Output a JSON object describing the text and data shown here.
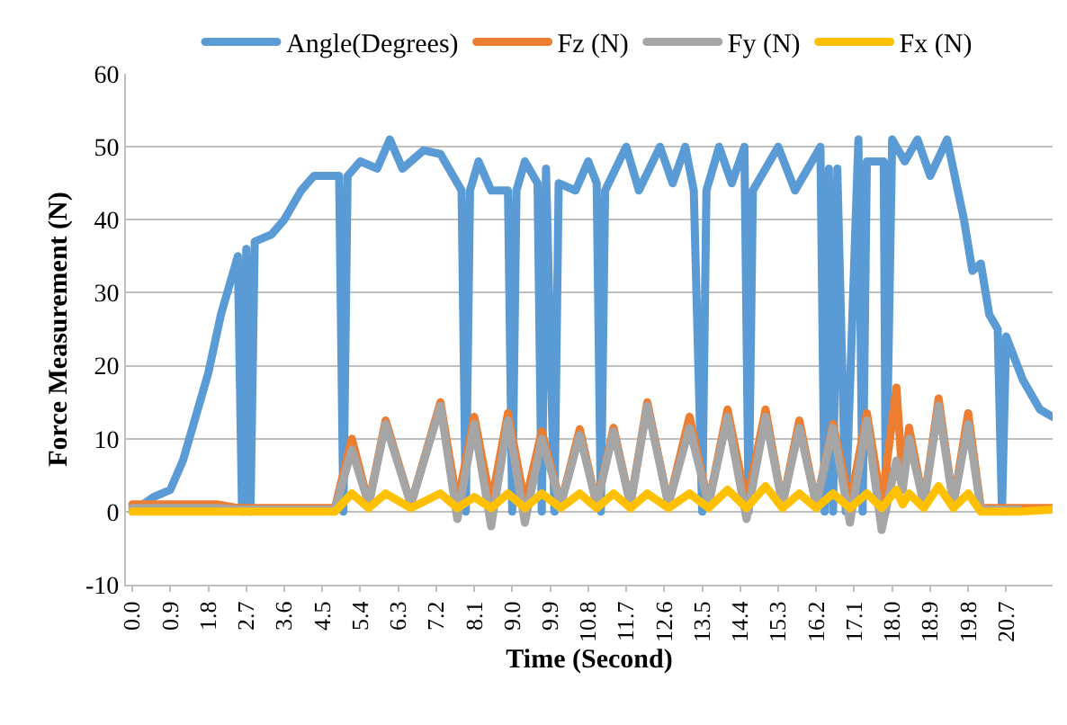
{
  "chart_data": {
    "type": "line",
    "xlabel": "Time (Second)",
    "ylabel": "Force Measurement (N)",
    "xlim": [
      -0.15,
      21.8
    ],
    "ylim": [
      -10,
      60
    ],
    "yticks": [
      -10,
      0,
      10,
      20,
      30,
      40,
      50,
      60
    ],
    "xticks": [
      {
        "value": 0,
        "label": "0.0"
      },
      {
        "value": 0.9,
        "label": "0.9"
      },
      {
        "value": 1.8,
        "label": "1.8"
      },
      {
        "value": 2.7,
        "label": "2.7"
      },
      {
        "value": 3.6,
        "label": "3.6"
      },
      {
        "value": 4.5,
        "label": "4.5"
      },
      {
        "value": 5.4,
        "label": "5.4"
      },
      {
        "value": 6.3,
        "label": "6.3"
      },
      {
        "value": 7.2,
        "label": "7.2"
      },
      {
        "value": 8.1,
        "label": "8.1"
      },
      {
        "value": 9,
        "label": "9.0"
      },
      {
        "value": 9.9,
        "label": "9.9"
      },
      {
        "value": 10.8,
        "label": "10.8"
      },
      {
        "value": 11.7,
        "label": "11.7"
      },
      {
        "value": 12.6,
        "label": "12.6"
      },
      {
        "value": 13.5,
        "label": "13.5"
      },
      {
        "value": 14.4,
        "label": "14.4"
      },
      {
        "value": 15.3,
        "label": "15.3"
      },
      {
        "value": 16.2,
        "label": "16.2"
      },
      {
        "value": 17.1,
        "label": "17.1"
      },
      {
        "value": 18,
        "label": "18.0"
      },
      {
        "value": 18.9,
        "label": "18.9"
      },
      {
        "value": 19.8,
        "label": "19.8"
      },
      {
        "value": 20.7,
        "label": "20.7"
      }
    ],
    "grid": "y",
    "legend": "top",
    "marker": "none",
    "line_style": "solid",
    "series": [
      {
        "name": "Angle(Degrees)",
        "color": "#5b9bd5",
        "x": [
          0,
          0.5,
          0.9,
          1.2,
          1.5,
          1.8,
          2.1,
          2.3,
          2.5,
          2.6,
          2.7,
          2.8,
          2.9,
          3.3,
          3.6,
          4.0,
          4.3,
          4.9,
          5.0,
          5.1,
          5.4,
          5.8,
          6.1,
          6.4,
          6.9,
          7.3,
          7.6,
          7.8,
          7.9,
          8.0,
          8.2,
          8.5,
          8.9,
          9.0,
          9.1,
          9.3,
          9.6,
          9.7,
          9.8,
          10.0,
          10.1,
          10.5,
          10.8,
          11.0,
          11.1,
          11.2,
          11.7,
          12.0,
          12.5,
          12.8,
          13.1,
          13.3,
          13.5,
          13.6,
          13.9,
          14.2,
          14.5,
          14.6,
          14.7,
          15.3,
          15.7,
          16.3,
          16.4,
          16.5,
          16.6,
          16.7,
          16.9,
          17.2,
          17.3,
          17.4,
          17.8,
          17.85,
          18.0,
          18.3,
          18.6,
          18.9,
          19.3,
          19.7,
          19.9,
          20.1,
          20.3,
          20.5,
          20.6,
          20.7,
          21.1,
          21.5,
          21.8
        ],
        "values": [
          0,
          2,
          3,
          7,
          13,
          19,
          27,
          31,
          35,
          0,
          36,
          0,
          37,
          38,
          40,
          44,
          46,
          46,
          0,
          46,
          48,
          47,
          51,
          47,
          49.5,
          49,
          46,
          44,
          0,
          44,
          48,
          44,
          44,
          0,
          44,
          48,
          45,
          0,
          47,
          0,
          45,
          44,
          48,
          45,
          0,
          44,
          50,
          44,
          50,
          45,
          50,
          44,
          0,
          44,
          50,
          45,
          50,
          0,
          44,
          50,
          44,
          50,
          0,
          47,
          0,
          47,
          0,
          51,
          0,
          48,
          48,
          0,
          51,
          48,
          51,
          46,
          51,
          40,
          33,
          34,
          27,
          25,
          0,
          24,
          18,
          14,
          13
        ]
      },
      {
        "name": "Fz (N)",
        "color": "#ed7d31",
        "x": [
          0,
          1.0,
          2.0,
          2.5,
          4.8,
          5.2,
          5.6,
          6.0,
          6.6,
          7.3,
          7.7,
          8.1,
          8.5,
          8.9,
          9.3,
          9.7,
          10.15,
          10.6,
          11.0,
          11.4,
          11.8,
          12.2,
          12.7,
          13.2,
          13.65,
          14.1,
          14.55,
          15.0,
          15.4,
          15.8,
          16.2,
          16.6,
          17.0,
          17.4,
          17.75,
          18.1,
          18.25,
          18.4,
          18.75,
          19.1,
          19.45,
          19.8,
          20.1,
          21.0,
          21.8
        ],
        "values": [
          1,
          1,
          1,
          0.5,
          0.5,
          10,
          1,
          12.5,
          1,
          15,
          1,
          13,
          1,
          13.5,
          1,
          11,
          1,
          11.3,
          1,
          11.5,
          1,
          15,
          1,
          13,
          1,
          14,
          1,
          14,
          1,
          12.5,
          1,
          12,
          1,
          13.5,
          1,
          17,
          4,
          11.5,
          1,
          15.5,
          1,
          13.5,
          0.5,
          0.5,
          0.5
        ]
      },
      {
        "name": "Fy (N)",
        "color": "#a5a5a5",
        "x": [
          0,
          1.0,
          2.0,
          2.5,
          4.8,
          5.2,
          5.6,
          6.0,
          6.6,
          7.3,
          7.7,
          8.1,
          8.5,
          8.9,
          9.3,
          9.7,
          10.15,
          10.6,
          11.0,
          11.4,
          11.8,
          12.2,
          12.7,
          13.2,
          13.65,
          14.1,
          14.55,
          15.0,
          15.4,
          15.8,
          16.2,
          16.6,
          17.0,
          17.4,
          17.75,
          18.1,
          18.25,
          18.4,
          18.75,
          19.1,
          19.45,
          19.8,
          20.1,
          21.0
        ],
        "values": [
          0.5,
          0.5,
          0.5,
          0.3,
          0.3,
          8.5,
          1,
          12,
          1,
          14.5,
          -1,
          12,
          -2,
          12.5,
          -1.5,
          10,
          1,
          10.5,
          1,
          11,
          1,
          14.5,
          1,
          11.5,
          1,
          13,
          -1,
          13,
          1,
          11.5,
          1,
          11.5,
          -1.5,
          12.5,
          -2.5,
          7,
          3,
          10,
          1,
          14.5,
          1,
          12,
          0.3,
          0.3
        ]
      },
      {
        "name": "Fx (N)",
        "color": "#ffc000",
        "x": [
          0,
          1.0,
          2.0,
          2.5,
          4.8,
          5.2,
          5.6,
          6.0,
          6.6,
          7.3,
          7.7,
          8.1,
          8.5,
          8.9,
          9.3,
          9.7,
          10.15,
          10.6,
          11.0,
          11.4,
          11.8,
          12.2,
          12.7,
          13.2,
          13.65,
          14.1,
          14.55,
          15.0,
          15.4,
          15.8,
          16.2,
          16.6,
          17.0,
          17.4,
          17.75,
          18.1,
          18.25,
          18.4,
          18.75,
          19.1,
          19.45,
          19.8,
          20.1,
          21.0,
          21.8
        ],
        "values": [
          0,
          0,
          0,
          0,
          0,
          2.5,
          0.5,
          2.5,
          0.5,
          2.5,
          0.5,
          2,
          0.5,
          2.5,
          0.5,
          2.5,
          0.5,
          2.5,
          0.5,
          2.5,
          0.5,
          2.5,
          0.5,
          2.5,
          0.5,
          3,
          0.5,
          3.5,
          0.5,
          2.5,
          0.5,
          2.5,
          0.5,
          2.5,
          0.5,
          3,
          1,
          2.5,
          0.5,
          3.5,
          0.5,
          2.5,
          0,
          0,
          0.3
        ]
      }
    ]
  }
}
